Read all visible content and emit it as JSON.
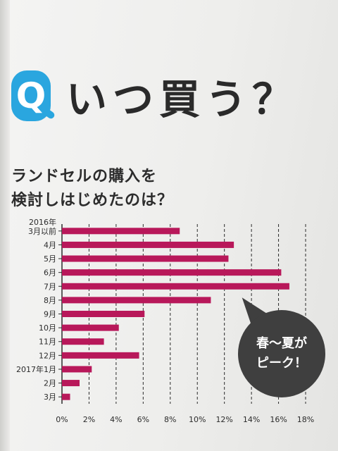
{
  "heading": {
    "badge": "Q",
    "title": "いつ買う？"
  },
  "subtitle": {
    "line1": "ランドセルの購入を",
    "line2": "検討しはじめたのは？"
  },
  "callout": {
    "line1": "春〜夏が",
    "line2": "ピーク！"
  },
  "colors": {
    "bar": "#b8185a",
    "badge": "#2aa6df",
    "callout": "#3f3f3f",
    "text": "#2b2b2b"
  },
  "chart_data": {
    "type": "bar",
    "orientation": "horizontal",
    "categories": [
      [
        "2016年",
        "3月以前"
      ],
      [
        "4月"
      ],
      [
        "5月"
      ],
      [
        "6月"
      ],
      [
        "7月"
      ],
      [
        "8月"
      ],
      [
        "9月"
      ],
      [
        "10月"
      ],
      [
        "11月"
      ],
      [
        "12月"
      ],
      [
        "2017年1月"
      ],
      [
        "2月"
      ],
      [
        "3月"
      ]
    ],
    "values": [
      8.7,
      12.7,
      12.3,
      16.2,
      16.8,
      11.0,
      6.1,
      4.2,
      3.1,
      5.7,
      2.2,
      1.3,
      0.6
    ],
    "x_ticks": [
      "0%",
      "2%",
      "4%",
      "6%",
      "8%",
      "10%",
      "12%",
      "14%",
      "16%",
      "18%"
    ],
    "xlim": [
      0,
      18
    ],
    "grid": "vertical-dashed"
  }
}
